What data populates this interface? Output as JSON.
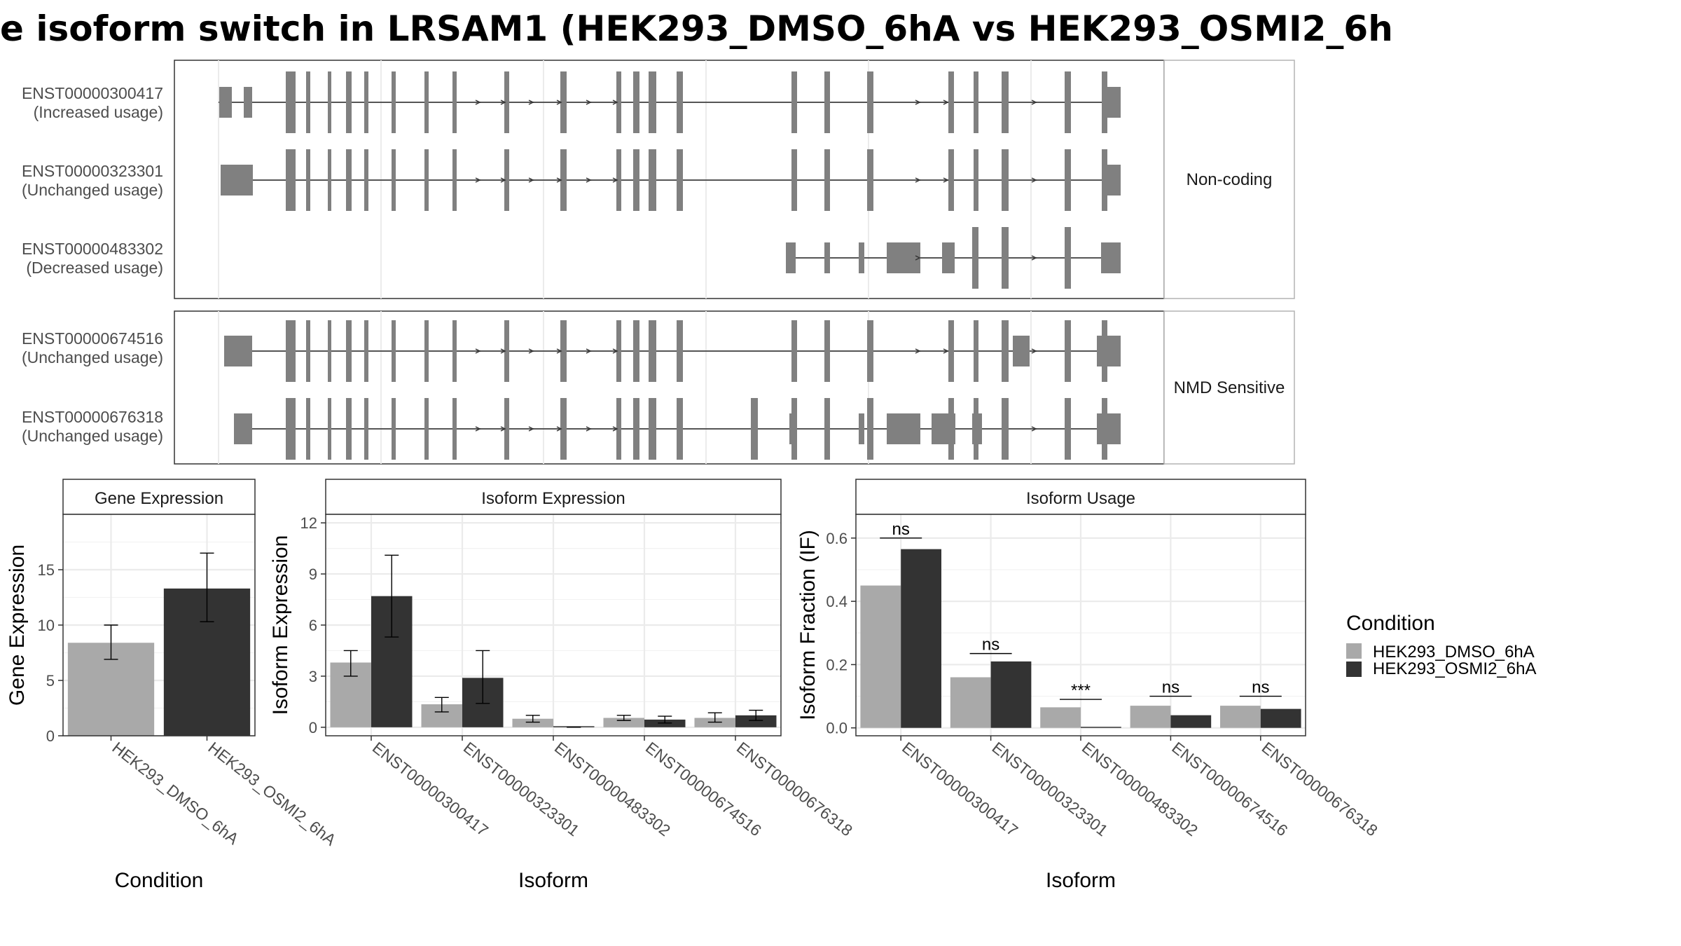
{
  "title": "e isoform switch in LRSAM1 (HEK293_DMSO_6hA vs HEK293_OSMI2_6h",
  "colors": {
    "dmso": "#A9A9A9",
    "osmi": "#333333",
    "exon": "#808080",
    "strip_bg": "#FFFFFF",
    "grid": "#EBEBEB",
    "border": "#333333"
  },
  "transcript_panel": {
    "groups": [
      {
        "label": "Non-coding",
        "rows": [
          {
            "id": "ENST00000300417",
            "usage": "(Increased usage)"
          },
          {
            "id": "ENST00000323301",
            "usage": "(Unchanged usage)"
          },
          {
            "id": "ENST00000483302",
            "usage": "(Decreased usage)"
          }
        ]
      },
      {
        "label": "NMD Sensitive",
        "rows": [
          {
            "id": "ENST00000674516",
            "usage": "(Unchanged usage)"
          },
          {
            "id": "ENST00000676318",
            "usage": "(Unchanged usage)"
          }
        ]
      }
    ]
  },
  "legend": {
    "title": "Condition",
    "items": [
      {
        "name": "HEK293_DMSO_6hA",
        "color": "#A9A9A9"
      },
      {
        "name": "HEK293_OSMI2_6hA",
        "color": "#333333"
      }
    ]
  },
  "chart_data": [
    {
      "type": "bar",
      "title": "Gene Expression",
      "xlabel": "Condition",
      "ylabel": "Gene Expression",
      "categories": [
        "HEK293_DMSO_6hA",
        "HEK293_OSMI2_6hA"
      ],
      "yticks": [
        0,
        5,
        10,
        15
      ],
      "ylim": [
        0,
        20
      ],
      "series": [
        {
          "name": "HEK293_DMSO_6hA",
          "values": [
            8.4,
            null
          ],
          "err_low": [
            6.9,
            null
          ],
          "err_high": [
            10.0,
            null
          ]
        },
        {
          "name": "HEK293_OSMI2_6hA",
          "values": [
            null,
            13.3
          ],
          "err_low": [
            null,
            10.3
          ],
          "err_high": [
            null,
            16.5
          ]
        }
      ],
      "grid": true
    },
    {
      "type": "bar",
      "title": "Isoform Expression",
      "xlabel": "Isoform",
      "ylabel": "Isoform Expression",
      "categories": [
        "ENST00000300417",
        "ENST00000323301",
        "ENST00000483302",
        "ENST00000674516",
        "ENST00000676318"
      ],
      "yticks": [
        0,
        3,
        6,
        9,
        12
      ],
      "ylim": [
        -0.5,
        12.5
      ],
      "series": [
        {
          "name": "HEK293_DMSO_6hA",
          "values": [
            3.8,
            1.35,
            0.5,
            0.55,
            0.55
          ],
          "err_low": [
            3.0,
            0.9,
            0.3,
            0.4,
            0.3
          ],
          "err_high": [
            4.5,
            1.75,
            0.7,
            0.7,
            0.85
          ]
        },
        {
          "name": "HEK293_OSMI2_6hA",
          "values": [
            7.7,
            2.9,
            0.0,
            0.45,
            0.7
          ],
          "err_low": [
            5.3,
            1.4,
            0.0,
            0.25,
            0.4
          ],
          "err_high": [
            10.1,
            4.5,
            0.0,
            0.65,
            1.0
          ]
        }
      ],
      "grid": true
    },
    {
      "type": "bar",
      "title": "Isoform Usage",
      "xlabel": "Isoform",
      "ylabel": "Isoform Fraction (IF)",
      "categories": [
        "ENST00000300417",
        "ENST00000323301",
        "ENST00000483302",
        "ENST00000674516",
        "ENST00000676318"
      ],
      "yticks": [
        0.0,
        0.2,
        0.4,
        0.6
      ],
      "ylim": [
        -0.025,
        0.675
      ],
      "series": [
        {
          "name": "HEK293_DMSO_6hA",
          "values": [
            0.45,
            0.16,
            0.065,
            0.07,
            0.07
          ]
        },
        {
          "name": "HEK293_OSMI2_6hA",
          "values": [
            0.565,
            0.21,
            0.0,
            0.04,
            0.06
          ]
        }
      ],
      "significance": [
        {
          "label": "ns",
          "y": 0.6
        },
        {
          "label": "ns",
          "y": 0.235
        },
        {
          "label": "***",
          "y": 0.09
        },
        {
          "label": "ns",
          "y": 0.1
        },
        {
          "label": "ns",
          "y": 0.1
        }
      ],
      "grid": true
    }
  ]
}
